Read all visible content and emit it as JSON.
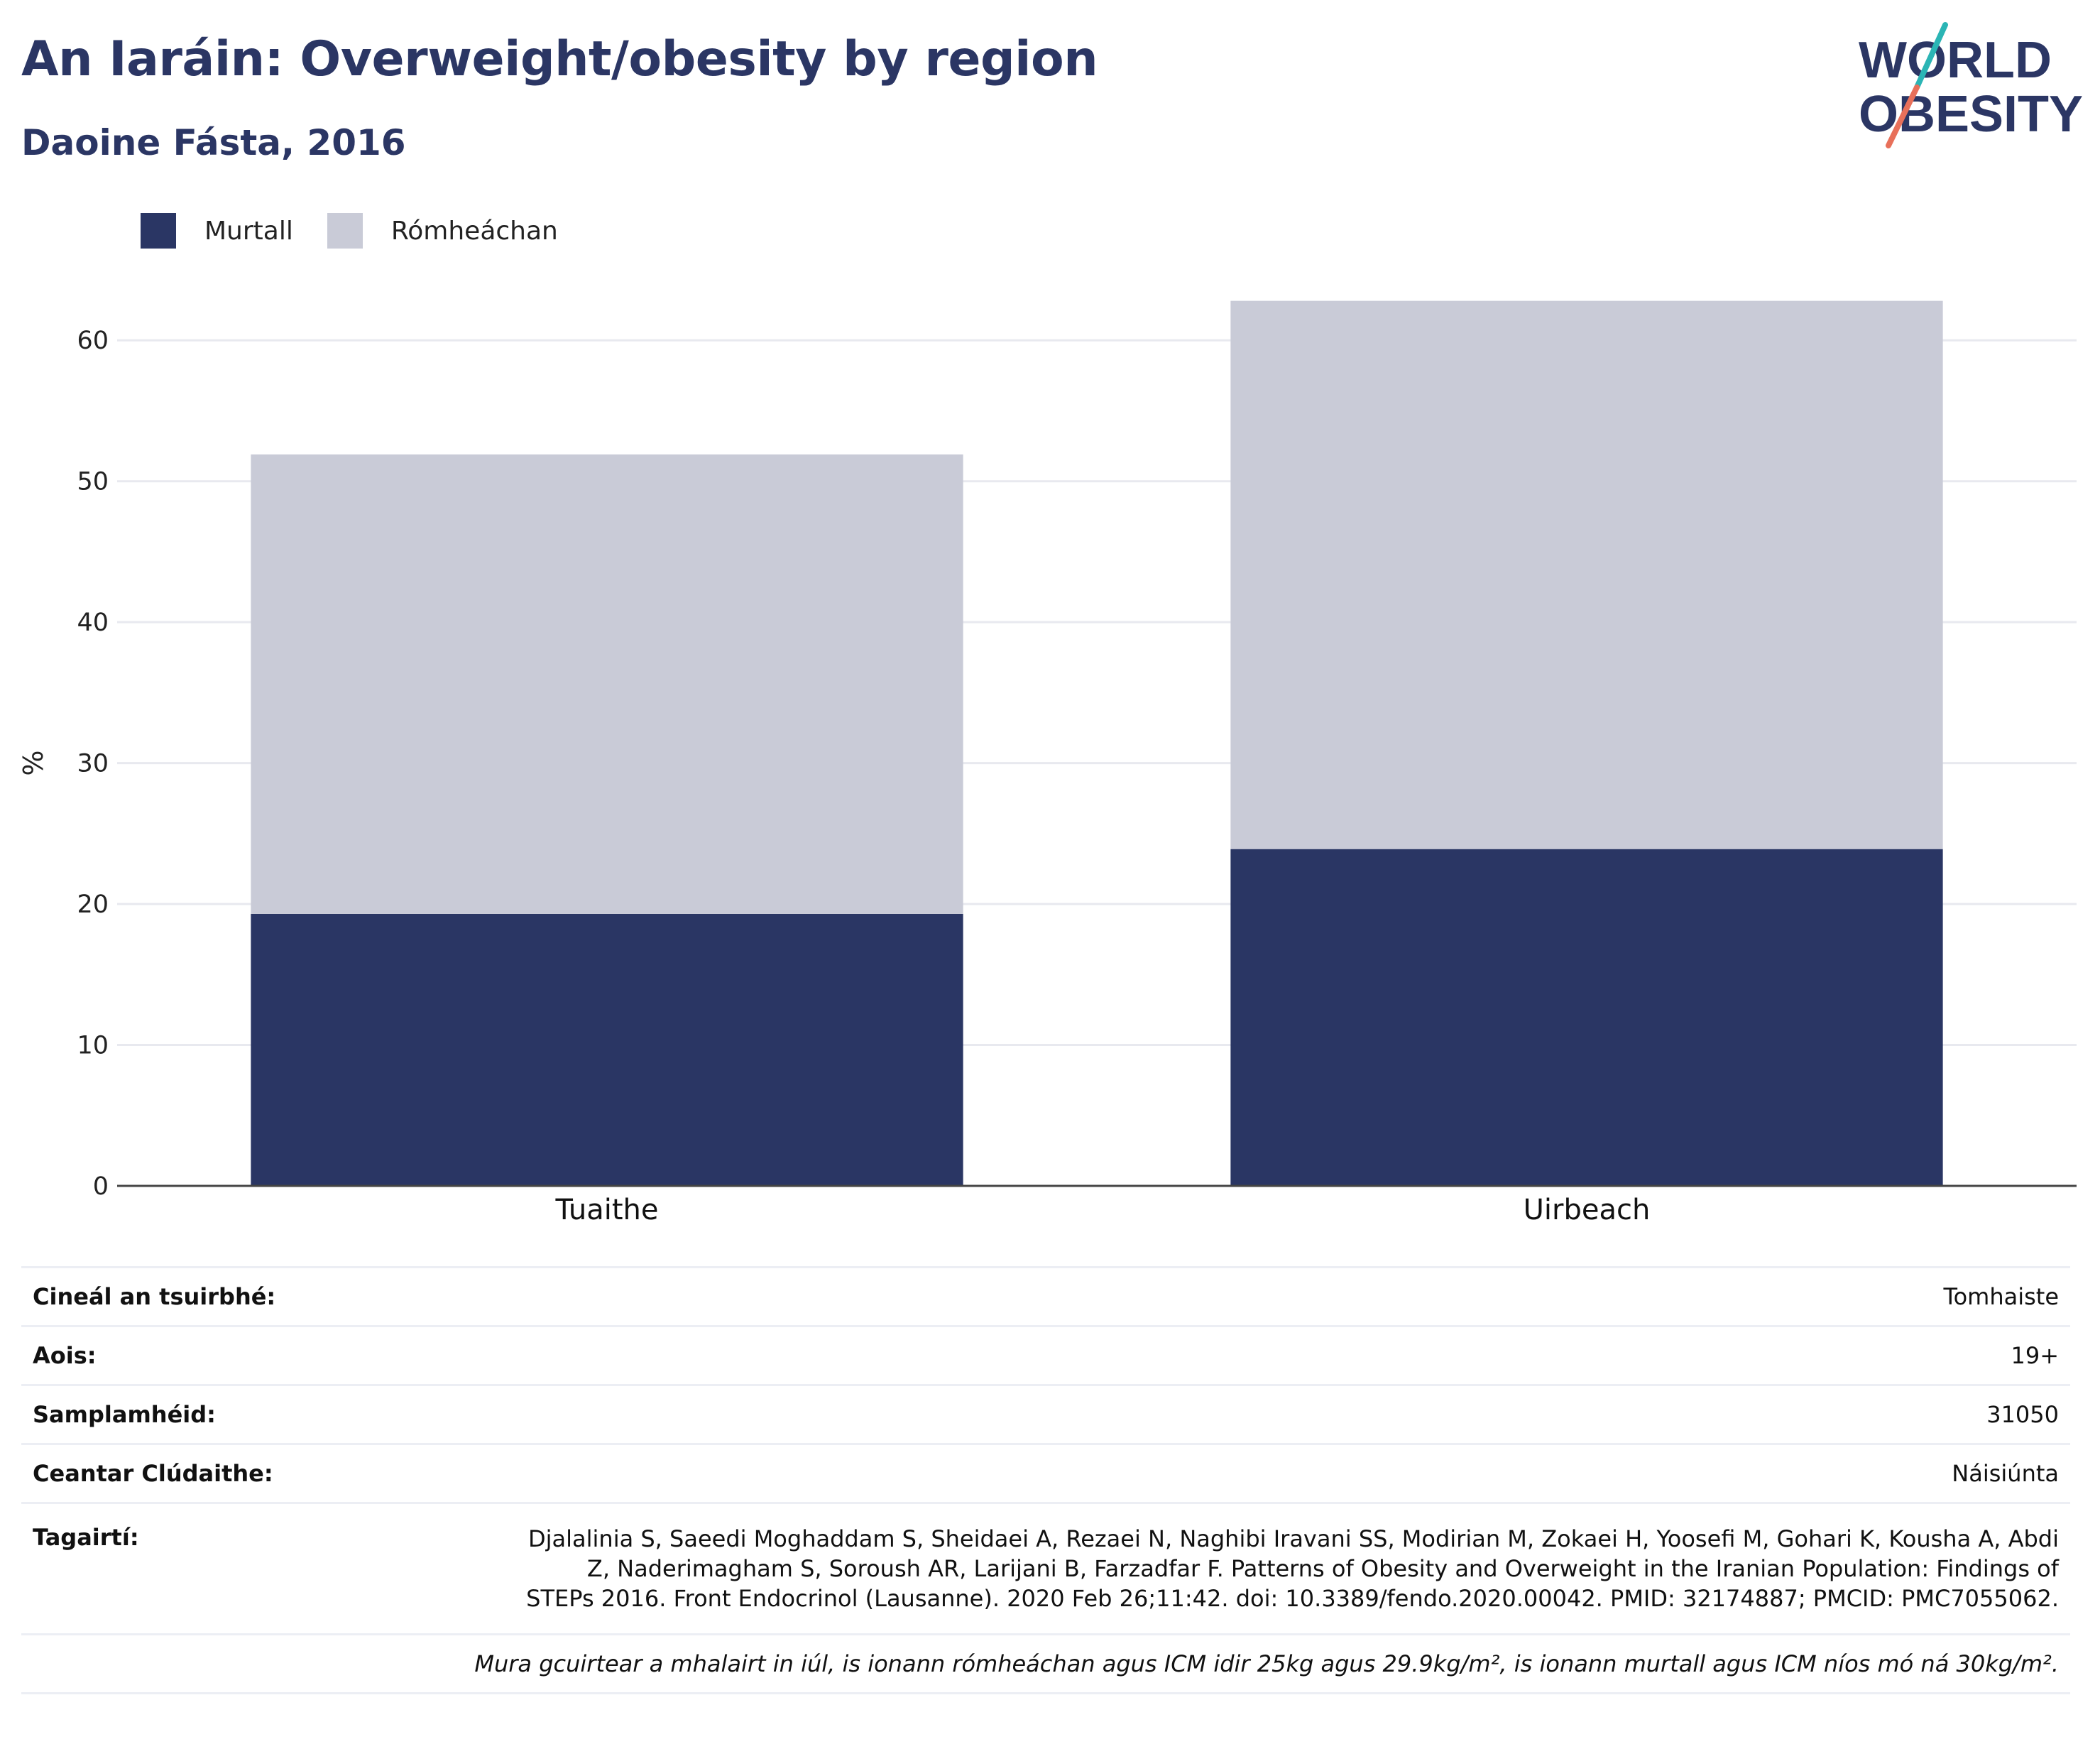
{
  "header": {
    "title": "An Iaráin: Overweight/obesity by region",
    "subtitle": "Daoine Fásta, 2016"
  },
  "logo": {
    "line1": "WORLD",
    "line2": "OBESITY"
  },
  "colors": {
    "obese": "#2a3664",
    "overweight": "#c9cbd7",
    "title": "#2b3664",
    "accent_teal": "#2bb5b5",
    "accent_red": "#e8705a"
  },
  "chart_data": {
    "type": "bar",
    "stacked": true,
    "categories": [
      "Tuaithe",
      "Uirbeach"
    ],
    "series": [
      {
        "name": "Murtall",
        "values": [
          19.3,
          23.9
        ]
      },
      {
        "name": "Rómheáchan",
        "values": [
          32.6,
          38.9
        ]
      }
    ],
    "ylabel": "%",
    "ylim": [
      0,
      65
    ],
    "yticks": [
      0,
      10,
      20,
      30,
      40,
      50,
      60
    ],
    "grid": true,
    "legend": "top-left"
  },
  "info": {
    "rows": [
      {
        "label": "Cineál an tsuirbhé:",
        "value": "Tomhaiste"
      },
      {
        "label": "Aois:",
        "value": "19+"
      },
      {
        "label": "Samplamhéid:",
        "value": "31050"
      },
      {
        "label": "Ceantar Clúdaithe:",
        "value": "Náisiúnta"
      }
    ],
    "references_label": "Tagairtí:",
    "references": "Djalalinia S, Saeedi Moghaddam S, Sheidaei A, Rezaei N, Naghibi Iravani SS, Modirian M, Zokaei H, Yoosefi M, Gohari K, Kousha A, Abdi Z, Naderimagham S, Soroush AR, Larijani B, Farzadfar F. Patterns of Obesity and Overweight in the Iranian Population: Findings of STEPs 2016. Front Endocrinol (Lausanne). 2020 Feb 26;11:42. doi: 10.3389/fendo.2020.00042. PMID: 32174887; PMCID: PMC7055062.",
    "note": "Mura gcuirtear a mhalairt in iúl, is ionann rómheáchan agus ICM idir 25kg agus 29.9kg/m², is ionann murtall agus ICM níos mó ná 30kg/m²."
  }
}
